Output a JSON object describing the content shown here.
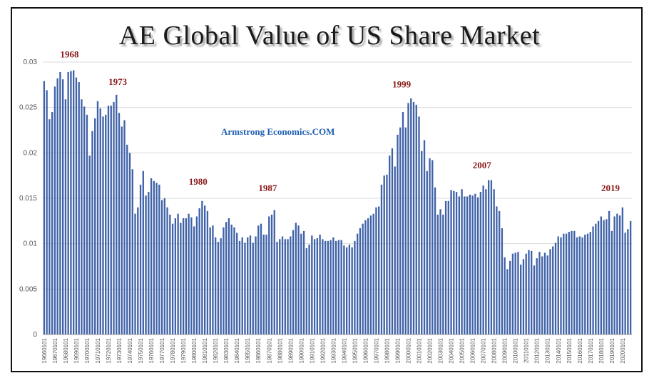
{
  "chart_data": {
    "type": "bar",
    "title": "AE Global Value of US Share Market",
    "watermark": "Armstrong Economics.COM",
    "xlabel": "",
    "ylabel": "",
    "ylim": [
      0,
      0.03
    ],
    "yticks": [
      "0",
      "0.005",
      "0.01",
      "0.015",
      "0.02",
      "0.025",
      "0.03"
    ],
    "grid": true,
    "bar_color": "#3f62a8",
    "annotation_color": "#8b1a1a",
    "annotations": [
      {
        "label": "1968",
        "year": 1968.5,
        "value": 0.0305
      },
      {
        "label": "1973",
        "year": 1973.0,
        "value": 0.0275
      },
      {
        "label": "1980",
        "year": 1980.5,
        "value": 0.0165
      },
      {
        "label": "1987",
        "year": 1987.0,
        "value": 0.0158
      },
      {
        "label": "1999",
        "year": 1999.5,
        "value": 0.0272
      },
      {
        "label": "2007",
        "year": 2007.0,
        "value": 0.0183
      },
      {
        "label": "2019",
        "year": 2019.0,
        "value": 0.0158
      }
    ],
    "tick_labels": [
      "19660101",
      "19670101",
      "19680101",
      "19690101",
      "19700101",
      "19710101",
      "19720101",
      "19730101",
      "19740101",
      "19750101",
      "19760101",
      "19770101",
      "19780101",
      "19790101",
      "19800101",
      "19810101",
      "19820101",
      "19830101",
      "19840101",
      "19850101",
      "19860101",
      "19870101",
      "19880101",
      "19890101",
      "19900101",
      "19910101",
      "19920101",
      "19930101",
      "19940101",
      "19950101",
      "19960101",
      "19970101",
      "19980101",
      "19990101",
      "20000101",
      "20010101",
      "20020101",
      "20030101",
      "20040101",
      "20050101",
      "20060101",
      "20070101",
      "20080101",
      "20090101",
      "20100101",
      "20110101",
      "20120101",
      "20130101",
      "20140101",
      "20150101",
      "20160101",
      "20170101",
      "20180101",
      "20190101",
      "20200101"
    ],
    "start_year": 1966,
    "periods_per_year": 4,
    "values": [
      0.0279,
      0.0269,
      0.0237,
      0.0245,
      0.0273,
      0.0282,
      0.0289,
      0.0281,
      0.0259,
      0.0289,
      0.029,
      0.0291,
      0.0283,
      0.0278,
      0.0259,
      0.0251,
      0.0242,
      0.0197,
      0.0224,
      0.0238,
      0.0257,
      0.0249,
      0.024,
      0.0242,
      0.0252,
      0.0252,
      0.0256,
      0.0264,
      0.0244,
      0.0229,
      0.0236,
      0.0209,
      0.02,
      0.0182,
      0.0133,
      0.014,
      0.0165,
      0.018,
      0.0153,
      0.0157,
      0.0172,
      0.0169,
      0.0167,
      0.0165,
      0.0148,
      0.015,
      0.014,
      0.0132,
      0.0122,
      0.0128,
      0.0133,
      0.0123,
      0.0128,
      0.0128,
      0.0133,
      0.0129,
      0.0119,
      0.013,
      0.0139,
      0.0147,
      0.0142,
      0.0136,
      0.0118,
      0.012,
      0.0107,
      0.0102,
      0.0106,
      0.0118,
      0.0124,
      0.0128,
      0.0121,
      0.0118,
      0.0112,
      0.0103,
      0.0107,
      0.0101,
      0.0107,
      0.0109,
      0.0101,
      0.0108,
      0.012,
      0.0122,
      0.011,
      0.011,
      0.013,
      0.0132,
      0.0137,
      0.0102,
      0.0105,
      0.0108,
      0.0105,
      0.0105,
      0.0108,
      0.0115,
      0.0123,
      0.012,
      0.0111,
      0.0114,
      0.0095,
      0.0099,
      0.0109,
      0.0105,
      0.0106,
      0.011,
      0.0105,
      0.0103,
      0.0103,
      0.0104,
      0.0107,
      0.0103,
      0.0104,
      0.0104,
      0.0098,
      0.0096,
      0.0099,
      0.0096,
      0.0103,
      0.0111,
      0.0117,
      0.0122,
      0.0126,
      0.0128,
      0.0131,
      0.0133,
      0.014,
      0.0141,
      0.0165,
      0.0175,
      0.0176,
      0.0197,
      0.0205,
      0.0185,
      0.022,
      0.0228,
      0.0245,
      0.0228,
      0.0255,
      0.026,
      0.0256,
      0.0253,
      0.024,
      0.0202,
      0.0214,
      0.018,
      0.0194,
      0.0192,
      0.0162,
      0.0132,
      0.0138,
      0.0132,
      0.0147,
      0.0147,
      0.0159,
      0.0158,
      0.0157,
      0.0152,
      0.016,
      0.0152,
      0.0152,
      0.0154,
      0.0153,
      0.0155,
      0.0151,
      0.0157,
      0.0164,
      0.016,
      0.017,
      0.017,
      0.016,
      0.0141,
      0.0136,
      0.0117,
      0.0085,
      0.0072,
      0.0081,
      0.0089,
      0.009,
      0.0091,
      0.0077,
      0.0083,
      0.0089,
      0.0093,
      0.0092,
      0.0076,
      0.0084,
      0.0091,
      0.0086,
      0.009,
      0.0087,
      0.0094,
      0.0097,
      0.0101,
      0.0108,
      0.0107,
      0.0111,
      0.0111,
      0.0113,
      0.0114,
      0.0114,
      0.0107,
      0.0108,
      0.0107,
      0.011,
      0.0111,
      0.0113,
      0.0119,
      0.0122,
      0.0125,
      0.013,
      0.0126,
      0.0127,
      0.0136,
      0.0114,
      0.013,
      0.0133,
      0.0131,
      0.014,
      0.0112,
      0.0116,
      0.0125
    ]
  }
}
